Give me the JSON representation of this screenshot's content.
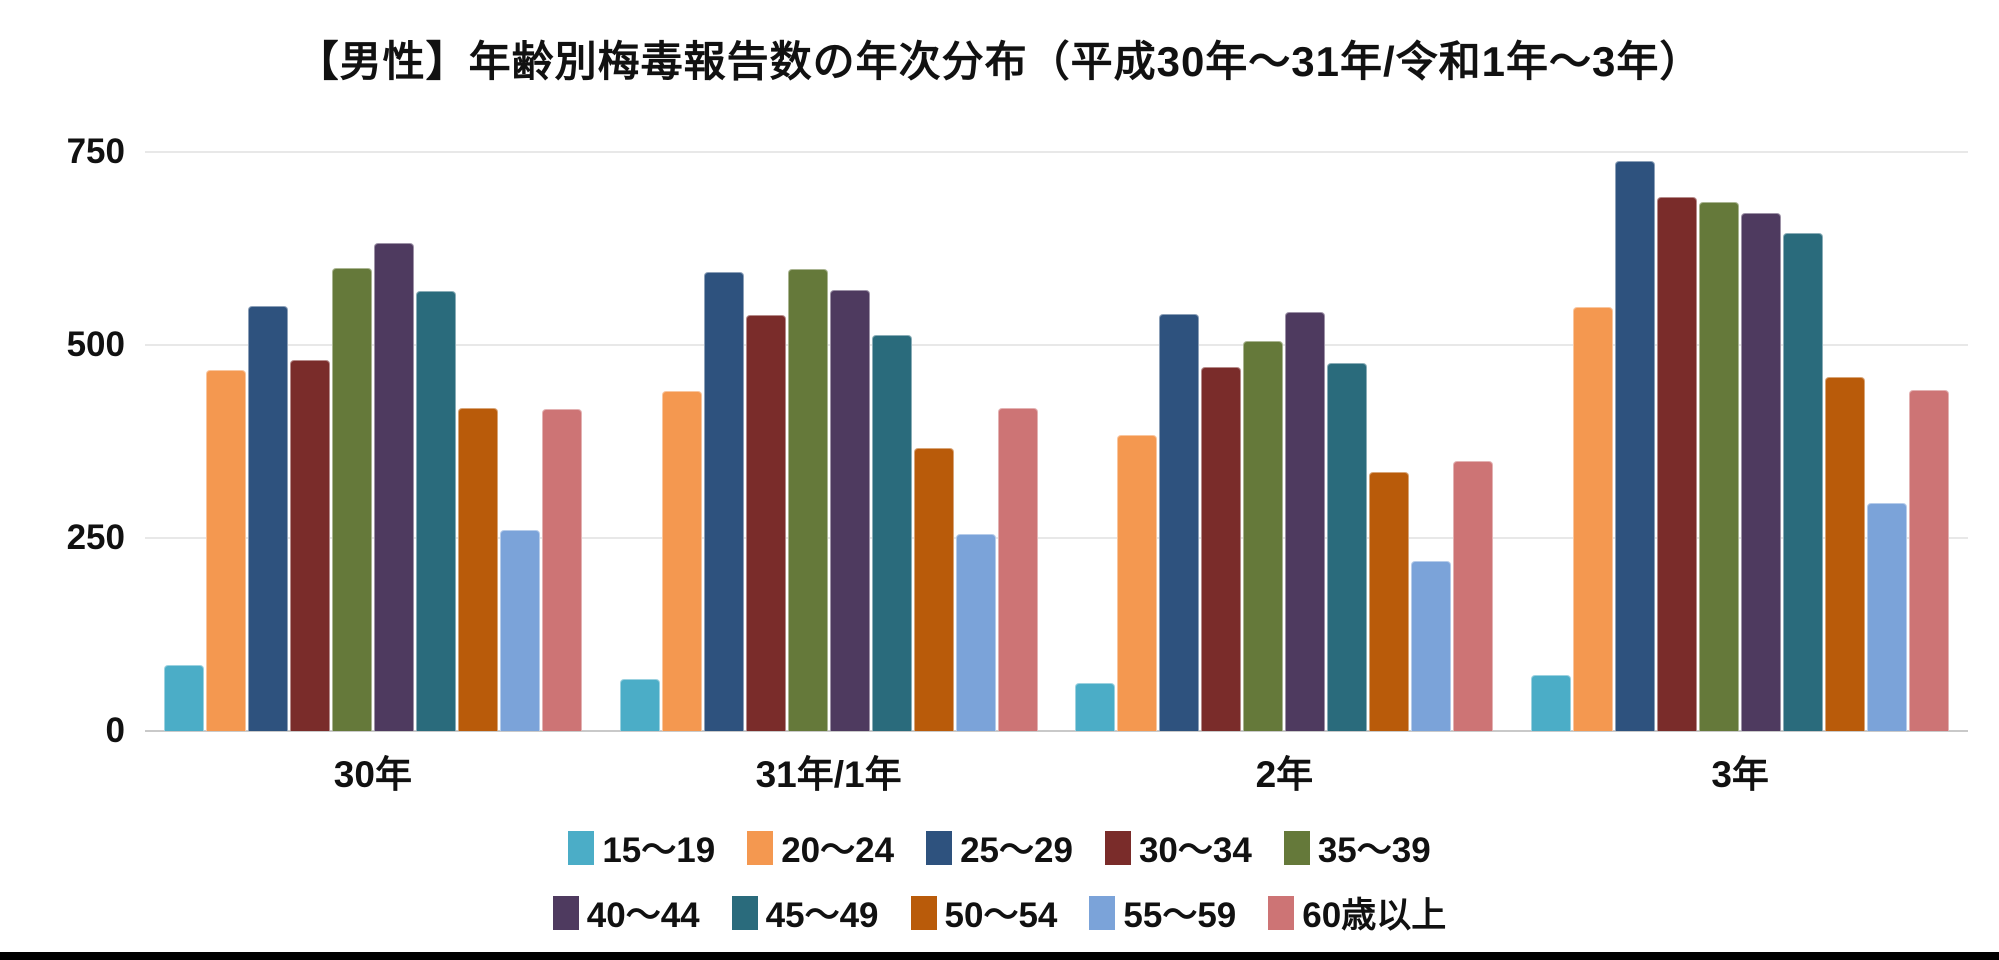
{
  "title": "【男性】年齢別梅毒報告数の年次分布（平成30年〜31年/令和1年〜3年）",
  "chart_data": {
    "type": "bar",
    "title": "【男性】年齢別梅毒報告数の年次分布（平成30年〜31年/令和1年〜3年）",
    "categories": [
      "30年",
      "31年/1年",
      "2年",
      "3年"
    ],
    "series": [
      {
        "name": "15〜19",
        "color": "#4BADC7",
        "values": [
          85,
          68,
          62,
          72
        ]
      },
      {
        "name": "20〜24",
        "color": "#F49850",
        "values": [
          467,
          441,
          383,
          549
        ]
      },
      {
        "name": "25〜29",
        "color": "#2E527E",
        "values": [
          551,
          594,
          540,
          738
        ]
      },
      {
        "name": "30〜34",
        "color": "#7A2C2A",
        "values": [
          481,
          539,
          472,
          692
        ]
      },
      {
        "name": "35〜39",
        "color": "#65793A",
        "values": [
          600,
          598,
          505,
          685
        ]
      },
      {
        "name": "40〜44",
        "color": "#4E3A5F",
        "values": [
          632,
          571,
          543,
          671
        ]
      },
      {
        "name": "45〜49",
        "color": "#2A6B7C",
        "values": [
          570,
          513,
          477,
          645
        ]
      },
      {
        "name": "50〜54",
        "color": "#B95B0A",
        "values": [
          418,
          367,
          335,
          458
        ]
      },
      {
        "name": "55〜59",
        "color": "#7BA3D9",
        "values": [
          261,
          255,
          220,
          295
        ]
      },
      {
        "name": "60歳以上",
        "color": "#CD7475",
        "values": [
          417,
          419,
          350,
          442
        ]
      }
    ],
    "xlabel": "",
    "ylabel": "",
    "ylim": [
      0,
      750
    ],
    "yticks": [
      0,
      250,
      500,
      750
    ],
    "grid": true,
    "legend_position": "bottom",
    "legend_rows": [
      5,
      5
    ]
  }
}
